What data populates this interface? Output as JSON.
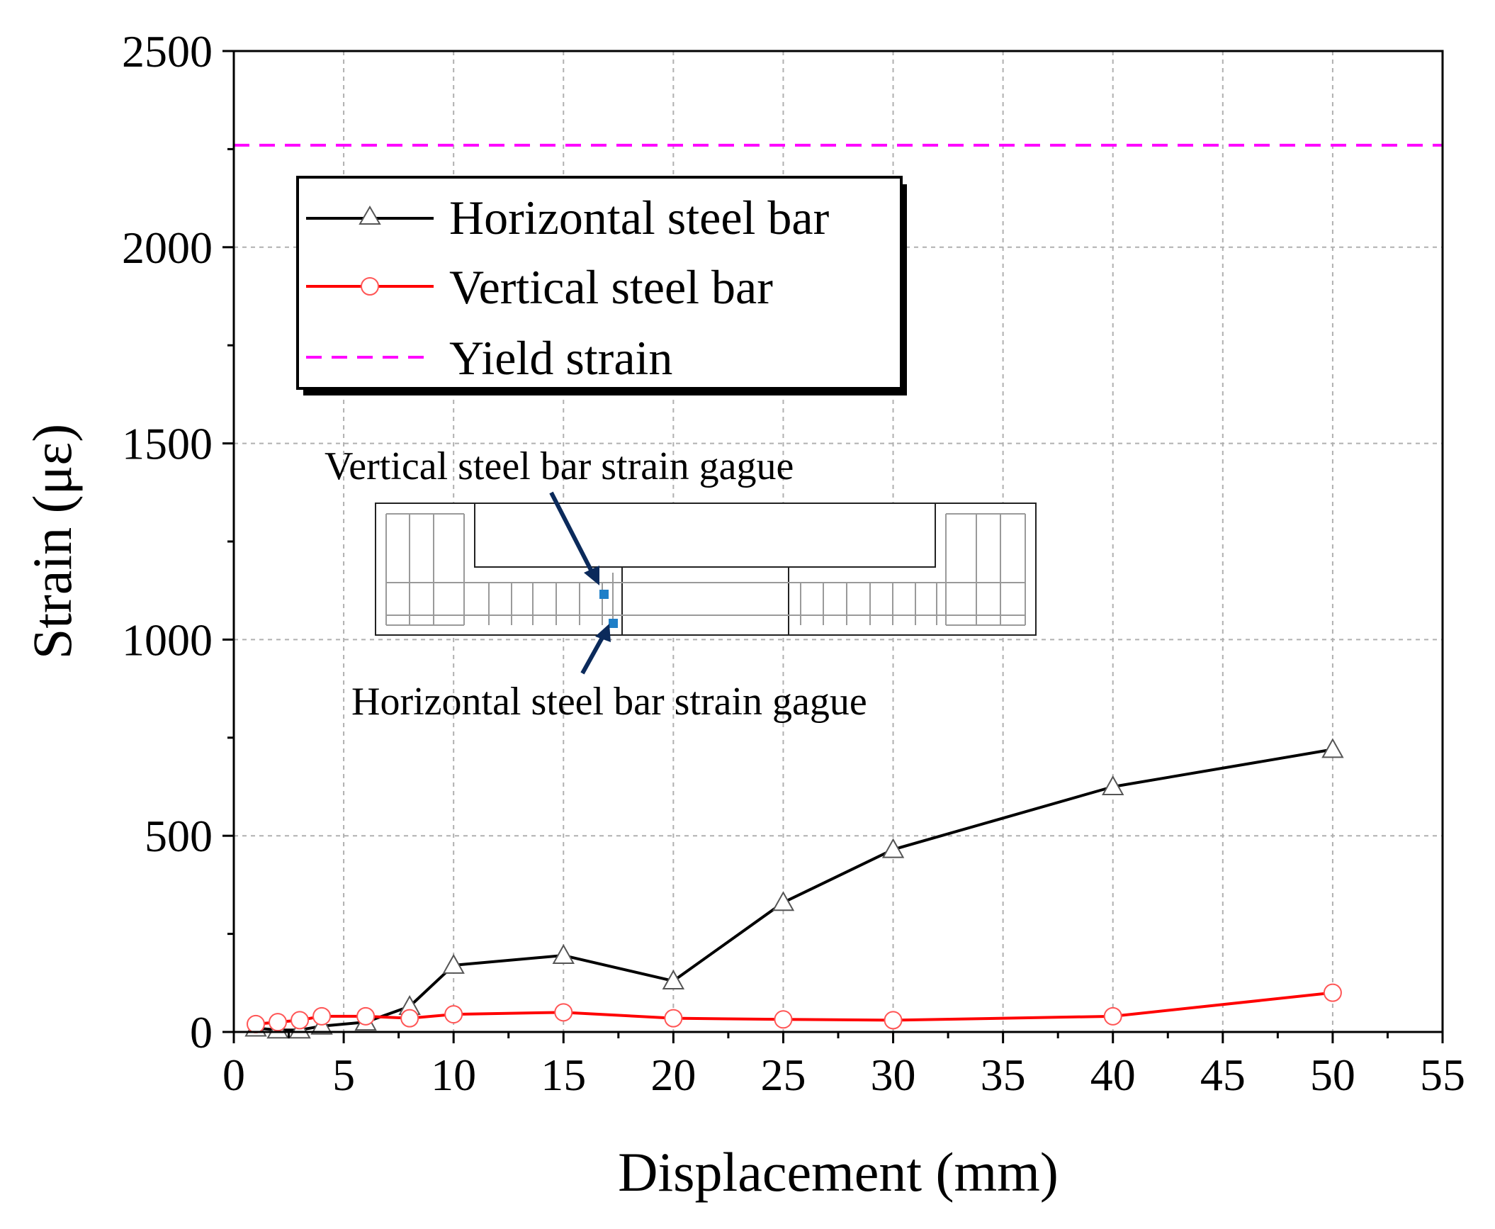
{
  "chart_data": {
    "type": "line",
    "xlabel": "Displacement (mm)",
    "ylabel": "Strain (με)",
    "xlim": [
      0,
      55
    ],
    "ylim": [
      0,
      2500
    ],
    "x_ticks": [
      0,
      5,
      10,
      15,
      20,
      25,
      30,
      35,
      40,
      45,
      50,
      55
    ],
    "y_ticks": [
      0,
      500,
      1000,
      1500,
      2000,
      2500
    ],
    "grid": true,
    "series": [
      {
        "name": "Horizontal steel bar",
        "color": "#000000",
        "marker": "triangle-open",
        "x": [
          1,
          2,
          3,
          4,
          6,
          8,
          10,
          15,
          20,
          25,
          30,
          40,
          50
        ],
        "y": [
          10,
          5,
          5,
          15,
          25,
          65,
          170,
          195,
          130,
          330,
          465,
          625,
          720
        ]
      },
      {
        "name": "Vertical steel bar",
        "color": "#ff0000",
        "marker": "circle-open",
        "x": [
          1,
          2,
          3,
          4,
          6,
          8,
          10,
          15,
          20,
          25,
          30,
          40,
          50
        ],
        "y": [
          20,
          25,
          30,
          40,
          40,
          35,
          45,
          50,
          35,
          32,
          30,
          40,
          100
        ]
      }
    ],
    "reference_lines": [
      {
        "name": "Yield strain",
        "y": 2260,
        "color": "#ff00ff",
        "style": "dashed"
      }
    ],
    "legend": {
      "position": "top-left",
      "entries": [
        "Horizontal steel bar",
        "Vertical steel bar",
        "Yield strain"
      ]
    },
    "annotations": {
      "vertical_gauge_label": "Vertical  steel bar strain gague",
      "horizontal_gauge_label": "Horizontal  steel bar strain gague",
      "gauge_color": "#1f7fc8",
      "arrow_color": "#0b2a5b"
    }
  }
}
